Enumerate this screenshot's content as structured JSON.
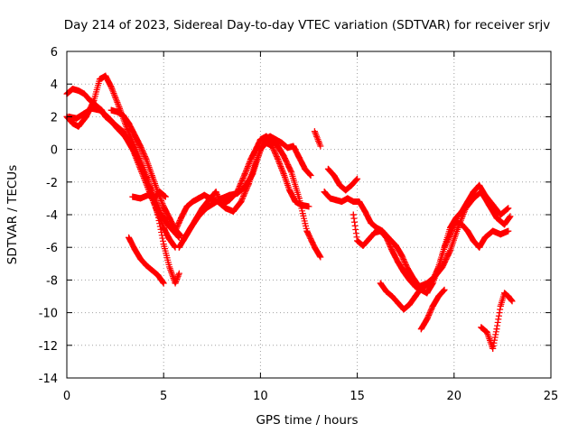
{
  "chart_data": {
    "type": "scatter",
    "title": "Day 214 of 2023, Sidereal Day-to-day VTEC variation (SDTVAR) for receiver srjv",
    "xlabel": "GPS time / hours",
    "ylabel": "SDTVAR / TECUs",
    "xlim": [
      0,
      25
    ],
    "ylim": [
      -14,
      6
    ],
    "xticks": [
      0,
      5,
      10,
      15,
      20,
      25
    ],
    "yticks": [
      -14,
      -12,
      -10,
      -8,
      -6,
      -4,
      -2,
      0,
      2,
      4,
      6
    ],
    "grid": true,
    "marker": "+",
    "color": "#ff0000",
    "series": [
      {
        "name": "track-1",
        "x": [
          0.0,
          0.3,
          0.6,
          0.9,
          1.2,
          1.5,
          1.8,
          2.0,
          2.3,
          2.6,
          3.0,
          3.4,
          3.8,
          4.2,
          4.6,
          5.0,
          5.3,
          5.6
        ],
        "y": [
          3.4,
          3.7,
          3.6,
          3.4,
          3.0,
          2.7,
          2.4,
          2.0,
          1.7,
          1.3,
          0.8,
          0.0,
          -1.2,
          -2.4,
          -3.6,
          -4.8,
          -5.5,
          -6.0
        ]
      },
      {
        "name": "track-2",
        "x": [
          0.0,
          0.3,
          0.6,
          1.0,
          1.4,
          1.7,
          2.0,
          2.3,
          2.7,
          3.1,
          3.5,
          3.9,
          4.3,
          4.7,
          5.0,
          5.3,
          5.6,
          5.8
        ],
        "y": [
          2.0,
          1.6,
          1.4,
          2.0,
          3.0,
          4.3,
          4.5,
          3.8,
          2.6,
          1.3,
          0.2,
          -1.0,
          -2.4,
          -4.0,
          -5.8,
          -7.2,
          -8.2,
          -7.6
        ]
      },
      {
        "name": "track-3",
        "x": [
          0.1,
          0.5,
          0.9,
          1.3,
          1.7,
          2.1,
          2.5,
          2.9,
          3.3,
          3.7,
          4.1,
          4.5,
          4.9,
          5.2,
          5.5,
          5.8
        ],
        "y": [
          2.0,
          1.9,
          2.2,
          2.5,
          2.4,
          2.0,
          1.5,
          1.1,
          0.3,
          -0.7,
          -1.7,
          -2.9,
          -4.0,
          -4.6,
          -5.0,
          -5.4
        ]
      },
      {
        "name": "track-4",
        "x": [
          2.3,
          2.6,
          2.9,
          3.2,
          3.5,
          3.8,
          4.1,
          4.4,
          4.7,
          5.0,
          5.3,
          5.6,
          5.9
        ],
        "y": [
          2.4,
          2.3,
          2.1,
          1.6,
          0.9,
          0.2,
          -0.6,
          -1.6,
          -2.6,
          -3.5,
          -4.2,
          -4.9,
          -5.3
        ]
      },
      {
        "name": "track-5",
        "x": [
          3.4,
          3.8,
          4.2,
          4.5,
          4.8,
          5.1
        ],
        "y": [
          -2.9,
          -3.0,
          -2.8,
          -3.0,
          -2.6,
          -2.9
        ]
      },
      {
        "name": "track-6",
        "x": [
          3.2,
          3.5,
          3.8,
          4.1,
          4.4,
          4.7,
          5.0
        ],
        "y": [
          -5.4,
          -6.1,
          -6.7,
          -7.1,
          -7.4,
          -7.7,
          -8.2
        ]
      },
      {
        "name": "track-7",
        "x": [
          5.6,
          5.9,
          6.2,
          6.5,
          6.8,
          7.1,
          7.4,
          7.7,
          8.0,
          8.4,
          8.8,
          9.2,
          9.5,
          9.8,
          10.0,
          10.3,
          10.6,
          10.9,
          11.2,
          11.6,
          12.0,
          12.4,
          12.8,
          13.1
        ],
        "y": [
          -5.0,
          -4.2,
          -3.5,
          -3.2,
          -3.0,
          -2.8,
          -3.0,
          -2.6,
          -3.4,
          -3.1,
          -2.6,
          -1.5,
          -0.6,
          0.1,
          0.6,
          0.8,
          0.5,
          0.2,
          -0.4,
          -1.4,
          -3.0,
          -5.0,
          -6.0,
          -6.6
        ]
      },
      {
        "name": "track-8",
        "x": [
          5.8,
          6.2,
          6.6,
          7.0,
          7.4,
          7.8,
          8.2,
          8.6,
          9.0,
          9.4,
          9.7,
          10.0,
          10.3,
          10.6,
          10.9,
          11.2,
          11.5,
          11.8,
          12.1,
          12.5
        ],
        "y": [
          -6.0,
          -5.2,
          -4.4,
          -3.6,
          -3.0,
          -3.2,
          -3.6,
          -3.8,
          -3.2,
          -2.1,
          -1.0,
          0.0,
          0.4,
          0.2,
          -0.6,
          -1.5,
          -2.5,
          -3.2,
          -3.4,
          -3.5
        ]
      },
      {
        "name": "track-9",
        "x": [
          6.0,
          6.4,
          6.8,
          7.2,
          7.6,
          8.0,
          8.4,
          8.8,
          9.2,
          9.6,
          9.9,
          10.2,
          10.5,
          10.8,
          11.1,
          11.4,
          11.7,
          12.0,
          12.3,
          12.6
        ],
        "y": [
          -5.6,
          -4.8,
          -4.1,
          -3.6,
          -3.3,
          -3.0,
          -2.8,
          -2.7,
          -2.3,
          -1.5,
          -0.4,
          0.6,
          0.8,
          0.6,
          0.4,
          0.1,
          0.2,
          -0.5,
          -1.2,
          -1.6
        ]
      },
      {
        "name": "track-10",
        "x": [
          12.8,
          12.9,
          13.0,
          13.1
        ],
        "y": [
          1.1,
          0.8,
          0.5,
          0.2
        ]
      },
      {
        "name": "track-11",
        "x": [
          13.3,
          13.6,
          13.9,
          14.2,
          14.5,
          14.8,
          15.1,
          15.4,
          15.7,
          16.0,
          16.3,
          16.6,
          17.0,
          17.3,
          17.6,
          17.9,
          18.2,
          18.6,
          19.0,
          19.4,
          19.8,
          20.2,
          20.6,
          21.0,
          21.4,
          21.8,
          22.2,
          22.6,
          22.9
        ],
        "y": [
          -2.6,
          -3.0,
          -3.1,
          -3.2,
          -3.0,
          -3.2,
          -3.2,
          -3.8,
          -4.5,
          -4.8,
          -5.0,
          -5.4,
          -5.9,
          -6.5,
          -7.3,
          -7.9,
          -8.4,
          -8.2,
          -7.8,
          -7.2,
          -6.2,
          -4.8,
          -3.6,
          -3.0,
          -2.6,
          -3.4,
          -4.2,
          -4.6,
          -4.1
        ]
      },
      {
        "name": "track-12",
        "x": [
          13.5,
          13.8,
          14.1,
          14.4,
          14.7,
          15.0
        ],
        "y": [
          -1.2,
          -1.6,
          -2.2,
          -2.5,
          -2.2,
          -1.8
        ]
      },
      {
        "name": "track-13",
        "x": [
          14.8,
          15.0,
          15.3,
          15.6,
          15.9,
          16.2,
          16.5,
          16.8,
          17.1,
          17.4,
          17.7,
          18.0,
          18.3,
          18.6,
          18.9,
          19.2,
          19.5,
          19.8,
          20.1,
          20.4,
          20.7,
          21.0,
          21.3,
          21.6,
          22.0,
          22.4,
          22.8
        ],
        "y": [
          -4.0,
          -5.6,
          -5.9,
          -5.5,
          -5.1,
          -5.0,
          -5.4,
          -6.2,
          -6.9,
          -7.5,
          -8.0,
          -8.4,
          -8.6,
          -8.8,
          -8.2,
          -7.2,
          -6.0,
          -4.8,
          -4.2,
          -3.8,
          -3.2,
          -2.6,
          -2.2,
          -2.8,
          -3.4,
          -4.0,
          -3.6
        ]
      },
      {
        "name": "track-14",
        "x": [
          16.2,
          16.5,
          16.8,
          17.1,
          17.4,
          17.7,
          18.0,
          18.3,
          18.6,
          18.9,
          19.2,
          19.5,
          19.8,
          20.1,
          20.4,
          20.7,
          21.0,
          21.3,
          21.6,
          22.0,
          22.4,
          22.8
        ],
        "y": [
          -8.2,
          -8.7,
          -9.0,
          -9.4,
          -9.8,
          -9.5,
          -9.0,
          -8.5,
          -8.3,
          -8.0,
          -7.2,
          -6.0,
          -5.2,
          -4.4,
          -4.6,
          -5.0,
          -5.6,
          -6.0,
          -5.4,
          -5.0,
          -5.2,
          -5.0
        ]
      },
      {
        "name": "track-15",
        "x": [
          18.3,
          18.6,
          18.9,
          19.2,
          19.5
        ],
        "y": [
          -11.0,
          -10.4,
          -9.6,
          -9.0,
          -8.6
        ]
      },
      {
        "name": "track-16",
        "x": [
          21.4,
          21.7,
          22.0,
          22.2,
          22.4,
          22.6,
          22.8,
          23.0
        ],
        "y": [
          -10.9,
          -11.2,
          -12.2,
          -11.0,
          -9.6,
          -8.8,
          -9.0,
          -9.3
        ]
      }
    ]
  }
}
